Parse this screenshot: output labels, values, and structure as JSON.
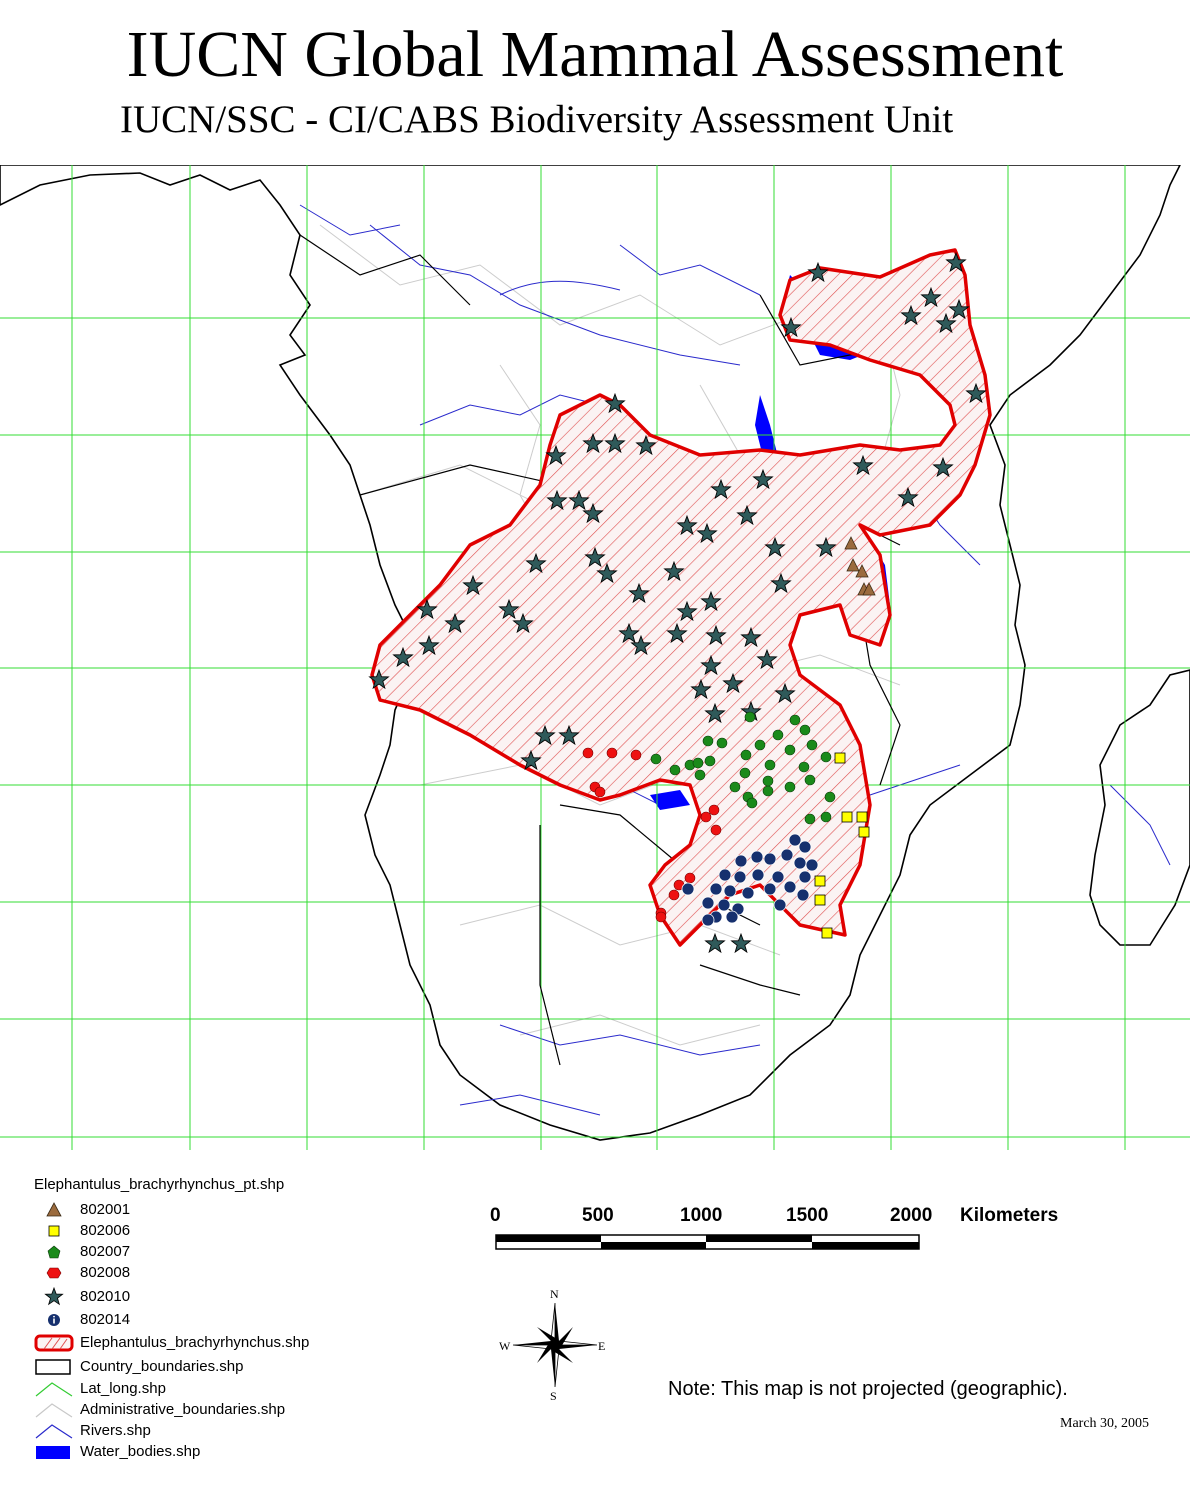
{
  "header": {
    "title": "IUCN Global Mammal Assessment",
    "subtitle": "IUCN/SSC - CI/CABS Biodiversity Assessment Unit"
  },
  "legend": {
    "title": "Elephantulus_brachyrhynchus_pt.shp",
    "point_classes": [
      {
        "label": "802001",
        "symbol": "triangle",
        "color": "#9b6b3e"
      },
      {
        "label": "802006",
        "symbol": "square",
        "color": "#ffff00"
      },
      {
        "label": "802007",
        "symbol": "pentagon",
        "color": "#1a8a1a"
      },
      {
        "label": "802008",
        "symbol": "hexagon",
        "color": "#ee1111"
      },
      {
        "label": "802010",
        "symbol": "star",
        "color": "#2f5a5a"
      },
      {
        "label": "802014",
        "symbol": "info-circle",
        "color": "#16306e"
      }
    ],
    "layers": [
      {
        "label": "Elephantulus_brachyrhynchus.shp",
        "symbol": "hatched-polygon",
        "color": "#e00000"
      },
      {
        "label": "Country_boundaries.shp",
        "symbol": "outline-box",
        "color": "#000000"
      },
      {
        "label": "Lat_long.shp",
        "symbol": "line",
        "color": "#33cc33"
      },
      {
        "label": "Administrative_boundaries.shp",
        "symbol": "line",
        "color": "#c8c8c8"
      },
      {
        "label": "Rivers.shp",
        "symbol": "line",
        "color": "#2a2acc"
      },
      {
        "label": "Water_bodies.shp",
        "symbol": "filled-box",
        "color": "#0000ff"
      }
    ]
  },
  "scale_bar": {
    "ticks": [
      "0",
      "500",
      "1000",
      "1500",
      "2000"
    ],
    "unit": "Kilometers"
  },
  "compass": {
    "n": "N",
    "s": "S",
    "e": "E",
    "w": "W"
  },
  "note": "Note: This map is not projected (geographic).",
  "date": "March 30, 2005",
  "colors": {
    "grid": "#33dd33",
    "range_outline": "#e00000",
    "rivers": "#2a2acc",
    "water": "#0000ff",
    "admin": "#cccccc",
    "country": "#000000"
  }
}
